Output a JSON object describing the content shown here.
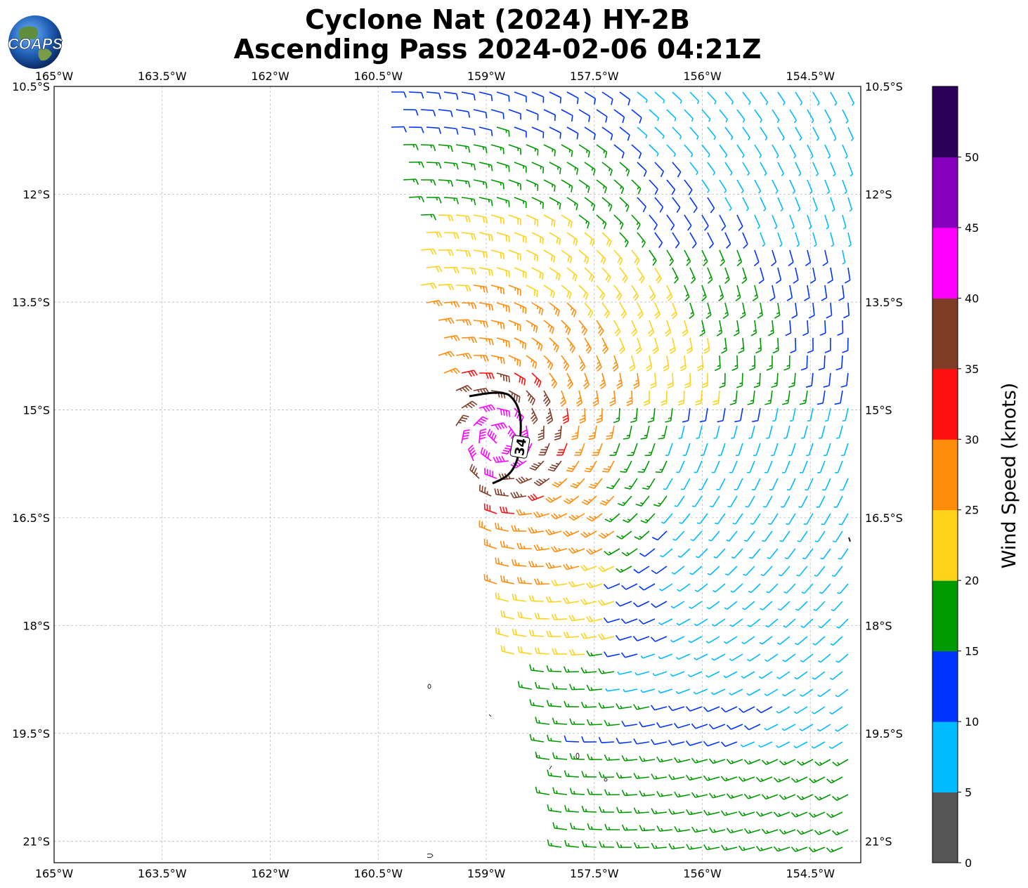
{
  "title": {
    "line1": "Cyclone Nat (2024) HY-2B",
    "line2": "Ascending Pass 2024-02-06 04:21Z"
  },
  "logo": {
    "text": "COAPS",
    "icon": "globe-logo-icon"
  },
  "map": {
    "lon_range": [
      -165.0,
      -153.8
    ],
    "lat_range": [
      -21.3,
      -10.5
    ],
    "lon_ticks": [
      "165°W",
      "163.5°W",
      "162°W",
      "160.5°W",
      "159°W",
      "157.5°W",
      "156°W",
      "154.5°W"
    ],
    "lat_ticks": [
      "10.5°S",
      "12°S",
      "13.5°S",
      "15°S",
      "16.5°S",
      "18°S",
      "19.5°S",
      "21°S"
    ],
    "gridlines": true,
    "contour_label": "34",
    "contour_color": "#000000"
  },
  "colorbar": {
    "title": "Wind Speed (knots)",
    "tick_labels": [
      "0",
      "5",
      "10",
      "15",
      "20",
      "25",
      "30",
      "35",
      "40",
      "45",
      "50"
    ],
    "colors": [
      "#555555",
      "#00bbff",
      "#0033ff",
      "#009900",
      "#ffd21a",
      "#ff8c0a",
      "#ff1010",
      "#7f3d28",
      "#ff00ff",
      "#8800bb",
      "#2b0059"
    ]
  }
}
